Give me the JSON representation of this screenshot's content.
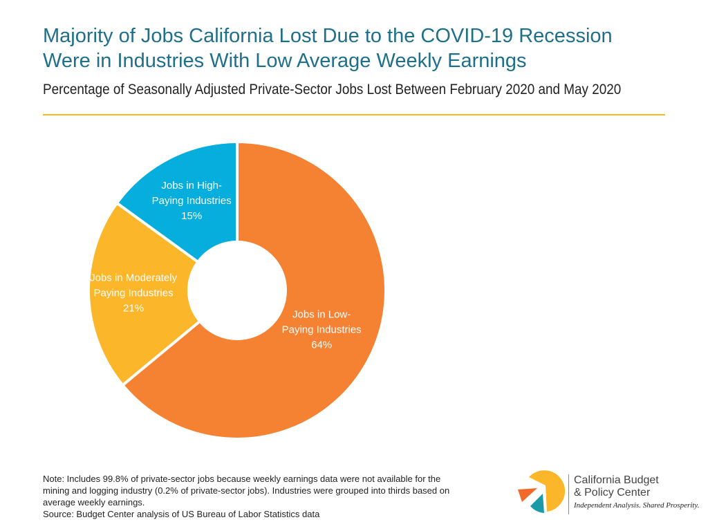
{
  "title_lines": [
    "Majority of Jobs California Lost Due to the COVID-19 Recession",
    "Were in Industries With Low Average Weekly Earnings"
  ],
  "subtitle": "Percentage of Seasonally Adjusted Private-Sector Jobs Lost Between February 2020 and May 2020",
  "chart_data": {
    "type": "pie",
    "variant": "donut",
    "title": "Majority of Jobs California Lost Due to the COVID-19 Recession Were in Industries With Low Average Weekly Earnings",
    "subtitle": "Percentage of Seasonally Adjusted Private-Sector Jobs Lost Between February 2020 and May 2020",
    "slices": [
      {
        "label_lines": [
          "Jobs in Low-",
          "Paying Industries"
        ],
        "value": 64,
        "value_label": "64%",
        "color": "#f58232"
      },
      {
        "label_lines": [
          "Jobs in Moderately",
          "Paying Industries"
        ],
        "value": 21,
        "value_label": "21%",
        "color": "#fbb62a"
      },
      {
        "label_lines": [
          "Jobs in High-",
          "Paying Industries"
        ],
        "value": 15,
        "value_label": "15%",
        "color": "#05aedd"
      }
    ],
    "start": "top",
    "direction": "clockwise",
    "legend": "none"
  },
  "notes": [
    "Note: Includes 99.8% of private-sector jobs because weekly earnings data were not available for the",
    "mining and logging industry (0.2% of private-sector jobs). Industries were grouped into thirds based on",
    "average weekly earnings.",
    "Source: Budget Center analysis of US Bureau of Labor Statistics data"
  ],
  "logo": {
    "name_lines": [
      "California Budget",
      "& Policy Center"
    ],
    "tagline": "Independent Analysis. Shared Prosperity.",
    "colors": {
      "yellow": "#fbb62a",
      "orange": "#f26a2a",
      "teal": "#1a9aa8"
    }
  }
}
